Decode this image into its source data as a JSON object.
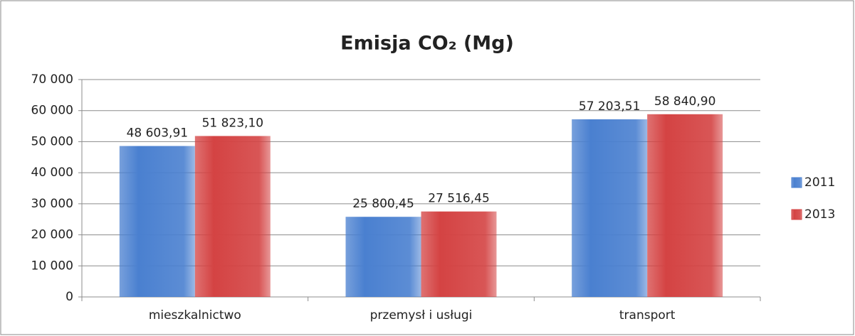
{
  "chart_data": {
    "type": "bar",
    "title": "Emisja CO₂ (Mg)",
    "categories": [
      "mieszkalnictwo",
      "przemysł i usługi",
      "transport"
    ],
    "series": [
      {
        "name": "2011",
        "color": "#4a80d0",
        "values": [
          48603.91,
          25800.45,
          57203.51
        ],
        "value_labels": [
          "48 603,91",
          "25 800,45",
          "57 203,51"
        ]
      },
      {
        "name": "2013",
        "color": "#d44343",
        "values": [
          51823.1,
          27516.45,
          58840.9
        ],
        "value_labels": [
          "51 823,10",
          "27 516,45",
          "58 840,90"
        ]
      }
    ],
    "ylim": [
      0,
      70000
    ],
    "yticks": [
      0,
      {
        "value": 10000,
        "label": "10 000"
      },
      {
        "value": 20000,
        "label": "20 000"
      },
      {
        "value": 30000,
        "label": "30 000"
      },
      {
        "value": 40000,
        "label": "40 000"
      },
      {
        "value": 50000,
        "label": "50 000"
      },
      {
        "value": 60000,
        "label": "60 000"
      },
      {
        "value": 70000,
        "label": "70 000"
      }
    ],
    "grid": true,
    "legend": "right"
  }
}
